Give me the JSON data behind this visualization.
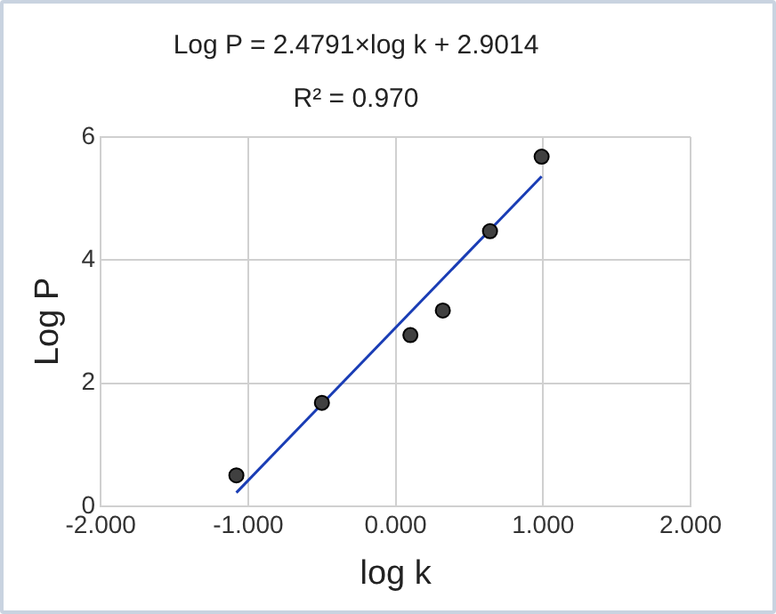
{
  "chart_data": {
    "type": "scatter",
    "title": "Log P = 2.4791×log k + 2.9014",
    "subtitle": "R² = 0.970",
    "xlabel": "log k",
    "ylabel": "Log P",
    "series": [
      {
        "type": "scatter",
        "marker": "circle",
        "color": "#404040",
        "x": [
          -1.08,
          -0.5,
          0.1,
          0.32,
          0.64,
          0.99
        ],
        "values": [
          0.5,
          1.68,
          2.78,
          3.18,
          4.47,
          5.68
        ]
      },
      {
        "type": "line",
        "marker": "none",
        "color": "#1a3db5",
        "x": [
          -1.08,
          0.99
        ],
        "values": [
          0.22,
          5.36
        ]
      }
    ],
    "xlim": [
      -2,
      2
    ],
    "xticks": [
      {
        "value": -2,
        "label": "-2.000"
      },
      {
        "value": -1,
        "label": "-1.000"
      },
      {
        "value": 0,
        "label": "0.000"
      },
      {
        "value": 1,
        "label": "1.000"
      },
      {
        "value": 2,
        "label": "2.000"
      }
    ],
    "ylim": [
      0,
      6
    ],
    "yticks": [
      0,
      2,
      4,
      6
    ],
    "grid": true,
    "line_style": "solid"
  }
}
